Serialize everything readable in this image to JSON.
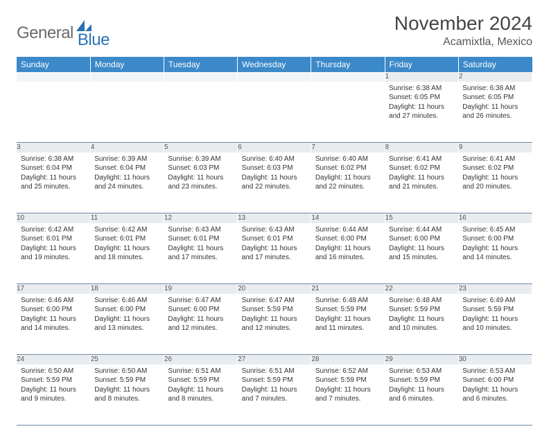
{
  "brand": {
    "general": "General",
    "blue": "Blue"
  },
  "title": "November 2024",
  "location": "Acamixtla, Mexico",
  "colors": {
    "header_bg": "#3b89c9",
    "header_text": "#ffffff",
    "daynum_bg": "#e9ecef",
    "border": "#6a8aa8",
    "brand_gray": "#6a6a6a",
    "brand_blue": "#2a72b5"
  },
  "weekdays": [
    "Sunday",
    "Monday",
    "Tuesday",
    "Wednesday",
    "Thursday",
    "Friday",
    "Saturday"
  ],
  "weeks": [
    [
      {
        "n": "",
        "sunrise": "",
        "sunset": "",
        "daylight": ""
      },
      {
        "n": "",
        "sunrise": "",
        "sunset": "",
        "daylight": ""
      },
      {
        "n": "",
        "sunrise": "",
        "sunset": "",
        "daylight": ""
      },
      {
        "n": "",
        "sunrise": "",
        "sunset": "",
        "daylight": ""
      },
      {
        "n": "",
        "sunrise": "",
        "sunset": "",
        "daylight": ""
      },
      {
        "n": "1",
        "sunrise": "Sunrise: 6:38 AM",
        "sunset": "Sunset: 6:05 PM",
        "daylight": "Daylight: 11 hours and 27 minutes."
      },
      {
        "n": "2",
        "sunrise": "Sunrise: 6:38 AM",
        "sunset": "Sunset: 6:05 PM",
        "daylight": "Daylight: 11 hours and 26 minutes."
      }
    ],
    [
      {
        "n": "3",
        "sunrise": "Sunrise: 6:38 AM",
        "sunset": "Sunset: 6:04 PM",
        "daylight": "Daylight: 11 hours and 25 minutes."
      },
      {
        "n": "4",
        "sunrise": "Sunrise: 6:39 AM",
        "sunset": "Sunset: 6:04 PM",
        "daylight": "Daylight: 11 hours and 24 minutes."
      },
      {
        "n": "5",
        "sunrise": "Sunrise: 6:39 AM",
        "sunset": "Sunset: 6:03 PM",
        "daylight": "Daylight: 11 hours and 23 minutes."
      },
      {
        "n": "6",
        "sunrise": "Sunrise: 6:40 AM",
        "sunset": "Sunset: 6:03 PM",
        "daylight": "Daylight: 11 hours and 22 minutes."
      },
      {
        "n": "7",
        "sunrise": "Sunrise: 6:40 AM",
        "sunset": "Sunset: 6:02 PM",
        "daylight": "Daylight: 11 hours and 22 minutes."
      },
      {
        "n": "8",
        "sunrise": "Sunrise: 6:41 AM",
        "sunset": "Sunset: 6:02 PM",
        "daylight": "Daylight: 11 hours and 21 minutes."
      },
      {
        "n": "9",
        "sunrise": "Sunrise: 6:41 AM",
        "sunset": "Sunset: 6:02 PM",
        "daylight": "Daylight: 11 hours and 20 minutes."
      }
    ],
    [
      {
        "n": "10",
        "sunrise": "Sunrise: 6:42 AM",
        "sunset": "Sunset: 6:01 PM",
        "daylight": "Daylight: 11 hours and 19 minutes."
      },
      {
        "n": "11",
        "sunrise": "Sunrise: 6:42 AM",
        "sunset": "Sunset: 6:01 PM",
        "daylight": "Daylight: 11 hours and 18 minutes."
      },
      {
        "n": "12",
        "sunrise": "Sunrise: 6:43 AM",
        "sunset": "Sunset: 6:01 PM",
        "daylight": "Daylight: 11 hours and 17 minutes."
      },
      {
        "n": "13",
        "sunrise": "Sunrise: 6:43 AM",
        "sunset": "Sunset: 6:01 PM",
        "daylight": "Daylight: 11 hours and 17 minutes."
      },
      {
        "n": "14",
        "sunrise": "Sunrise: 6:44 AM",
        "sunset": "Sunset: 6:00 PM",
        "daylight": "Daylight: 11 hours and 16 minutes."
      },
      {
        "n": "15",
        "sunrise": "Sunrise: 6:44 AM",
        "sunset": "Sunset: 6:00 PM",
        "daylight": "Daylight: 11 hours and 15 minutes."
      },
      {
        "n": "16",
        "sunrise": "Sunrise: 6:45 AM",
        "sunset": "Sunset: 6:00 PM",
        "daylight": "Daylight: 11 hours and 14 minutes."
      }
    ],
    [
      {
        "n": "17",
        "sunrise": "Sunrise: 6:46 AM",
        "sunset": "Sunset: 6:00 PM",
        "daylight": "Daylight: 11 hours and 14 minutes."
      },
      {
        "n": "18",
        "sunrise": "Sunrise: 6:46 AM",
        "sunset": "Sunset: 6:00 PM",
        "daylight": "Daylight: 11 hours and 13 minutes."
      },
      {
        "n": "19",
        "sunrise": "Sunrise: 6:47 AM",
        "sunset": "Sunset: 6:00 PM",
        "daylight": "Daylight: 11 hours and 12 minutes."
      },
      {
        "n": "20",
        "sunrise": "Sunrise: 6:47 AM",
        "sunset": "Sunset: 5:59 PM",
        "daylight": "Daylight: 11 hours and 12 minutes."
      },
      {
        "n": "21",
        "sunrise": "Sunrise: 6:48 AM",
        "sunset": "Sunset: 5:59 PM",
        "daylight": "Daylight: 11 hours and 11 minutes."
      },
      {
        "n": "22",
        "sunrise": "Sunrise: 6:48 AM",
        "sunset": "Sunset: 5:59 PM",
        "daylight": "Daylight: 11 hours and 10 minutes."
      },
      {
        "n": "23",
        "sunrise": "Sunrise: 6:49 AM",
        "sunset": "Sunset: 5:59 PM",
        "daylight": "Daylight: 11 hours and 10 minutes."
      }
    ],
    [
      {
        "n": "24",
        "sunrise": "Sunrise: 6:50 AM",
        "sunset": "Sunset: 5:59 PM",
        "daylight": "Daylight: 11 hours and 9 minutes."
      },
      {
        "n": "25",
        "sunrise": "Sunrise: 6:50 AM",
        "sunset": "Sunset: 5:59 PM",
        "daylight": "Daylight: 11 hours and 8 minutes."
      },
      {
        "n": "26",
        "sunrise": "Sunrise: 6:51 AM",
        "sunset": "Sunset: 5:59 PM",
        "daylight": "Daylight: 11 hours and 8 minutes."
      },
      {
        "n": "27",
        "sunrise": "Sunrise: 6:51 AM",
        "sunset": "Sunset: 5:59 PM",
        "daylight": "Daylight: 11 hours and 7 minutes."
      },
      {
        "n": "28",
        "sunrise": "Sunrise: 6:52 AM",
        "sunset": "Sunset: 5:59 PM",
        "daylight": "Daylight: 11 hours and 7 minutes."
      },
      {
        "n": "29",
        "sunrise": "Sunrise: 6:53 AM",
        "sunset": "Sunset: 5:59 PM",
        "daylight": "Daylight: 11 hours and 6 minutes."
      },
      {
        "n": "30",
        "sunrise": "Sunrise: 6:53 AM",
        "sunset": "Sunset: 6:00 PM",
        "daylight": "Daylight: 11 hours and 6 minutes."
      }
    ]
  ]
}
